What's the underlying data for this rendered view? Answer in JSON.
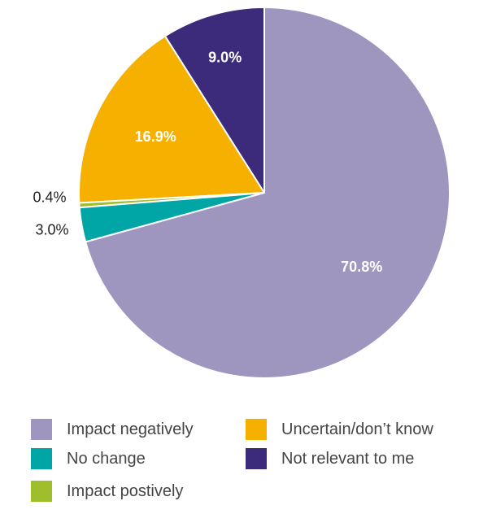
{
  "chart_data": {
    "type": "pie",
    "slices": [
      {
        "label": "Not relevant to me",
        "value": 9.0,
        "display": "9.0%",
        "color": "#3c2a7a",
        "label_color": "#ffffff"
      },
      {
        "label": "Uncertain/don’t know",
        "value": 16.9,
        "display": "16.9%",
        "color": "#f5b000",
        "label_color": "#ffffff"
      },
      {
        "label": "Impact postively",
        "value": 0.4,
        "display": "0.4%",
        "color": "#9ebe2c",
        "label_color": "#222222"
      },
      {
        "label": "No change",
        "value": 3.0,
        "display": "3.0%",
        "color": "#00a6a6",
        "label_color": "#222222"
      },
      {
        "label": "Impact negatively",
        "value": 70.8,
        "display": "70.8%",
        "color": "#9f96c0",
        "label_color": "#ffffff"
      }
    ],
    "start_angle": "12 o'clock",
    "direction": "counter-clockwise"
  },
  "legend": [
    {
      "label": "Impact negatively",
      "color": "#9f96c0"
    },
    {
      "label": "Uncertain/don’t know",
      "color": "#f5b000"
    },
    {
      "label": "No change",
      "color": "#00a6a6"
    },
    {
      "label": "Not relevant to me",
      "color": "#3c2a7a"
    },
    {
      "label": "Impact postively",
      "color": "#9ebe2c"
    }
  ]
}
